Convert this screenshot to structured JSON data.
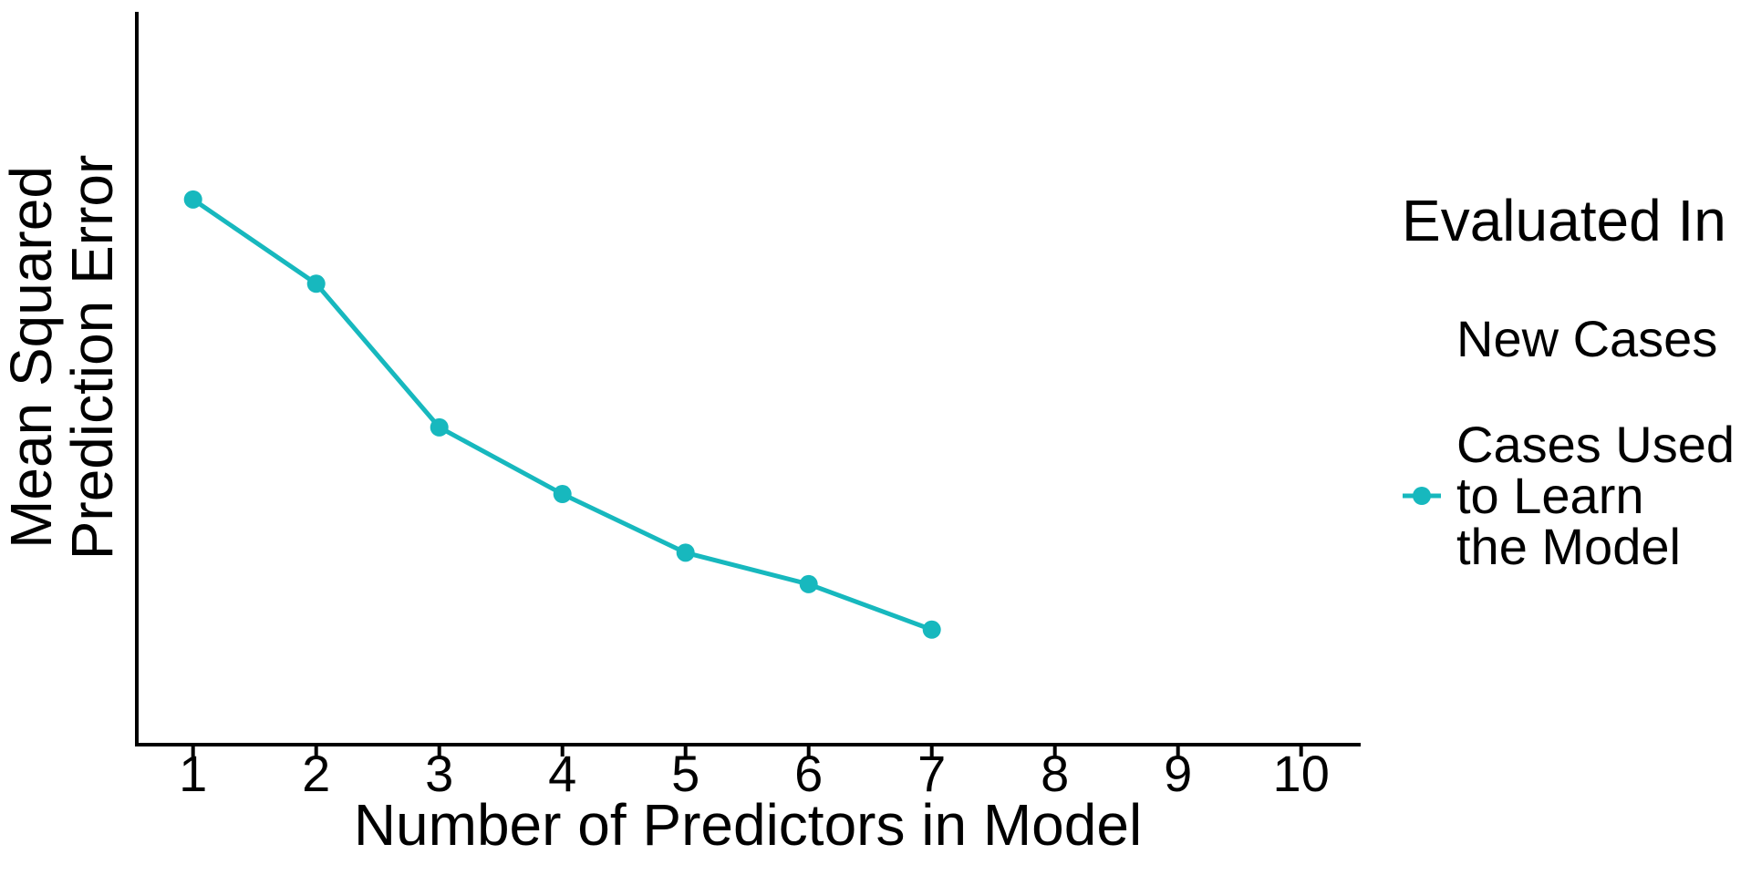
{
  "chart_data": {
    "type": "line",
    "title": "",
    "xlabel": "Number of Predictors in Model",
    "ylabel": "Mean Squared\nPrediction Error",
    "x_ticks": [
      "1",
      "2",
      "3",
      "4",
      "5",
      "6",
      "7",
      "8",
      "9",
      "10"
    ],
    "xlim": [
      0.55,
      10.5
    ],
    "ylim": [
      0,
      1
    ],
    "y_axis_note": "no y tick labels shown; y values are relative fractions of axis height",
    "grid": false,
    "axis_color": "#000000",
    "series": [
      {
        "name": "Cases Used to Learn the Model",
        "color": "#17b8be",
        "marker": "circle",
        "x": [
          1,
          2,
          3,
          4,
          5,
          6,
          7
        ],
        "y": [
          0.744,
          0.629,
          0.433,
          0.342,
          0.262,
          0.219,
          0.157
        ]
      }
    ],
    "legend": {
      "title": "Evaluated In",
      "position": "right",
      "entries": [
        {
          "label": "New Cases",
          "marker": "none"
        },
        {
          "label": "Cases Used\nto Learn\nthe Model",
          "marker": "line-circle",
          "color": "#17b8be"
        }
      ]
    }
  }
}
